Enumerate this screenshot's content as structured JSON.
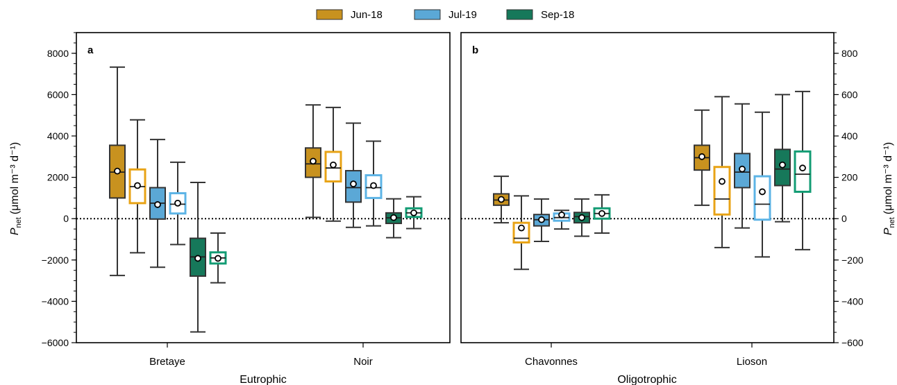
{
  "legend": {
    "placement": "top-center",
    "items": [
      {
        "label": "Jun-18",
        "color": "#C8921F"
      },
      {
        "label": "Jul-19",
        "color": "#5BA8D6"
      },
      {
        "label": "Sep-18",
        "color": "#16785A"
      }
    ]
  },
  "colors": {
    "jun_fill": "#C8921F",
    "jul_fill": "#5BA8D6",
    "sep_fill": "#16785A",
    "jun_outline": "#E8A316",
    "jul_outline": "#5DB4E6",
    "sep_outline": "#139C74",
    "whisker": "#333333"
  },
  "chart_data": [
    {
      "type": "box",
      "panel_label": "a",
      "group_label": "Eutrophic",
      "ylabel_main": "P",
      "ylabel_sub": "net",
      "ylabel_unit": "(μmol m⁻³ d⁻¹)",
      "ylim": [
        -6000,
        9000
      ],
      "yticks": [
        -6000,
        -4000,
        -2000,
        0,
        2000,
        4000,
        6000,
        8000
      ],
      "ytick_labels": [
        "−6000",
        "−4000",
        "−2000",
        "0",
        "2000",
        "4000",
        "6000",
        "8000"
      ],
      "reference_line": 0,
      "categories": [
        "Bretaye",
        "Noir"
      ],
      "boxes": [
        {
          "lake": "Bretaye",
          "series": "Jun-18",
          "style": "filled",
          "whislo": -2750,
          "q1": 1000,
          "med": 2250,
          "q3": 3550,
          "whishi": 7330,
          "mean": 2300
        },
        {
          "lake": "Bretaye",
          "series": "Jun-18",
          "style": "outline",
          "whislo": -1650,
          "q1": 750,
          "med": 1550,
          "q3": 2380,
          "whishi": 4780,
          "mean": 1600
        },
        {
          "lake": "Bretaye",
          "series": "Jul-19",
          "style": "filled",
          "whislo": -2350,
          "q1": -20,
          "med": 750,
          "q3": 1500,
          "whishi": 3830,
          "mean": 680
        },
        {
          "lake": "Bretaye",
          "series": "Jul-19",
          "style": "outline",
          "whislo": -1250,
          "q1": 250,
          "med": 700,
          "q3": 1230,
          "whishi": 2730,
          "mean": 750
        },
        {
          "lake": "Bretaye",
          "series": "Sep-18",
          "style": "filled",
          "whislo": -5480,
          "q1": -2780,
          "med": -1850,
          "q3": -950,
          "whishi": 1750,
          "mean": -1920
        },
        {
          "lake": "Bretaye",
          "series": "Sep-18",
          "style": "outline",
          "whislo": -3100,
          "q1": -2170,
          "med": -1900,
          "q3": -1630,
          "whishi": -700,
          "mean": -1920
        },
        {
          "lake": "Noir",
          "series": "Jun-18",
          "style": "filled",
          "whislo": 60,
          "q1": 2000,
          "med": 2650,
          "q3": 3420,
          "whishi": 5500,
          "mean": 2780
        },
        {
          "lake": "Noir",
          "series": "Jun-18",
          "style": "outline",
          "whislo": -120,
          "q1": 1800,
          "med": 2450,
          "q3": 3230,
          "whishi": 5380,
          "mean": 2600
        },
        {
          "lake": "Noir",
          "series": "Jul-19",
          "style": "filled",
          "whislo": -420,
          "q1": 800,
          "med": 1500,
          "q3": 2320,
          "whishi": 4620,
          "mean": 1680
        },
        {
          "lake": "Noir",
          "series": "Jul-19",
          "style": "outline",
          "whislo": -350,
          "q1": 1000,
          "med": 1500,
          "q3": 2100,
          "whishi": 3750,
          "mean": 1600
        },
        {
          "lake": "Noir",
          "series": "Sep-18",
          "style": "filled",
          "whislo": -920,
          "q1": -230,
          "med": 40,
          "q3": 280,
          "whishi": 960,
          "mean": 50
        },
        {
          "lake": "Noir",
          "series": "Sep-18",
          "style": "outline",
          "whislo": -480,
          "q1": 80,
          "med": 280,
          "q3": 500,
          "whishi": 1060,
          "mean": 280
        }
      ]
    },
    {
      "type": "box",
      "panel_label": "b",
      "group_label": "Oligotrophic",
      "ylabel_main": "P",
      "ylabel_sub": "net",
      "ylabel_unit": "(μmol m⁻³ d⁻¹)",
      "ylim": [
        -600,
        900
      ],
      "yticks": [
        -600,
        -400,
        -200,
        0,
        200,
        400,
        600,
        800
      ],
      "ytick_labels": [
        "−600",
        "−400",
        "−200",
        "0",
        "200",
        "400",
        "600",
        "800"
      ],
      "reference_line": 0,
      "categories": [
        "Chavonnes",
        "Lioson"
      ],
      "boxes": [
        {
          "lake": "Chavonnes",
          "series": "Jun-18",
          "style": "filled",
          "whislo": -20,
          "q1": 65,
          "med": 90,
          "q3": 120,
          "whishi": 205,
          "mean": 93
        },
        {
          "lake": "Chavonnes",
          "series": "Jun-18",
          "style": "outline",
          "whislo": -245,
          "q1": -115,
          "med": -95,
          "q3": -20,
          "whishi": 110,
          "mean": -45
        },
        {
          "lake": "Chavonnes",
          "series": "Jul-19",
          "style": "filled",
          "whislo": -110,
          "q1": -35,
          "med": -5,
          "q3": 20,
          "whishi": 95,
          "mean": -5
        },
        {
          "lake": "Chavonnes",
          "series": "Jul-19",
          "style": "outline",
          "whislo": -50,
          "q1": -10,
          "med": 5,
          "q3": 25,
          "whishi": 40,
          "mean": 18
        },
        {
          "lake": "Chavonnes",
          "series": "Sep-18",
          "style": "filled",
          "whislo": -85,
          "q1": -20,
          "med": 10,
          "q3": 30,
          "whishi": 95,
          "mean": 5
        },
        {
          "lake": "Chavonnes",
          "series": "Sep-18",
          "style": "outline",
          "whislo": -70,
          "q1": 0,
          "med": 25,
          "q3": 50,
          "whishi": 115,
          "mean": 25
        },
        {
          "lake": "Lioson",
          "series": "Jun-18",
          "style": "filled",
          "whislo": 65,
          "q1": 235,
          "med": 295,
          "q3": 355,
          "whishi": 525,
          "mean": 300
        },
        {
          "lake": "Lioson",
          "series": "Jun-18",
          "style": "outline",
          "whislo": -140,
          "q1": 20,
          "med": 95,
          "q3": 250,
          "whishi": 590,
          "mean": 180
        },
        {
          "lake": "Lioson",
          "series": "Jul-19",
          "style": "filled",
          "whislo": -45,
          "q1": 150,
          "med": 225,
          "q3": 315,
          "whishi": 555,
          "mean": 240
        },
        {
          "lake": "Lioson",
          "series": "Jul-19",
          "style": "outline",
          "whislo": -185,
          "q1": -5,
          "med": 70,
          "q3": 205,
          "whishi": 515,
          "mean": 130
        },
        {
          "lake": "Lioson",
          "series": "Sep-18",
          "style": "filled",
          "whislo": -15,
          "q1": 160,
          "med": 240,
          "q3": 335,
          "whishi": 600,
          "mean": 260
        },
        {
          "lake": "Lioson",
          "series": "Sep-18",
          "style": "outline",
          "whislo": -150,
          "q1": 130,
          "med": 215,
          "q3": 325,
          "whishi": 615,
          "mean": 245
        }
      ]
    }
  ]
}
